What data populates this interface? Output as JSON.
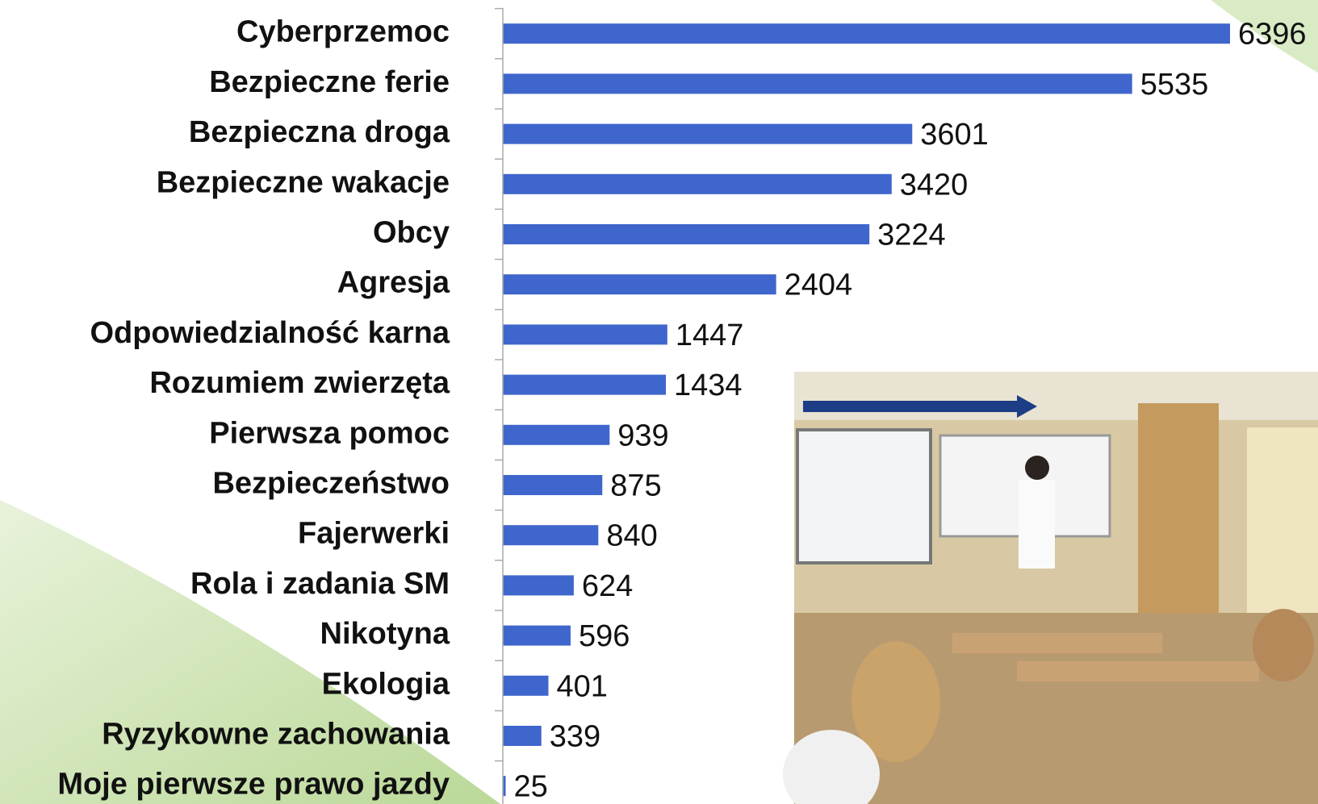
{
  "chart_data": {
    "type": "bar",
    "orientation": "horizontal",
    "categories": [
      "Cyberprzemoc",
      "Bezpieczne ferie",
      "Bezpieczna droga",
      "Bezpieczne wakacje",
      "Obcy",
      "Agresja",
      "Odpowiedzialność karna",
      "Rozumiem zwierzęta",
      "Pierwsza pomoc",
      "Bezpieczeństwo",
      "Fajerwerki",
      "Rola i zadania SM",
      "Nikotyna",
      "Ekologia",
      "Ryzykowne zachowania",
      "Moje pierwsze prawo jazdy"
    ],
    "values": [
      6396,
      5535,
      3601,
      3420,
      3224,
      2404,
      1447,
      1434,
      939,
      875,
      840,
      624,
      596,
      401,
      339,
      25
    ],
    "color": "#3f66cc"
  }
}
